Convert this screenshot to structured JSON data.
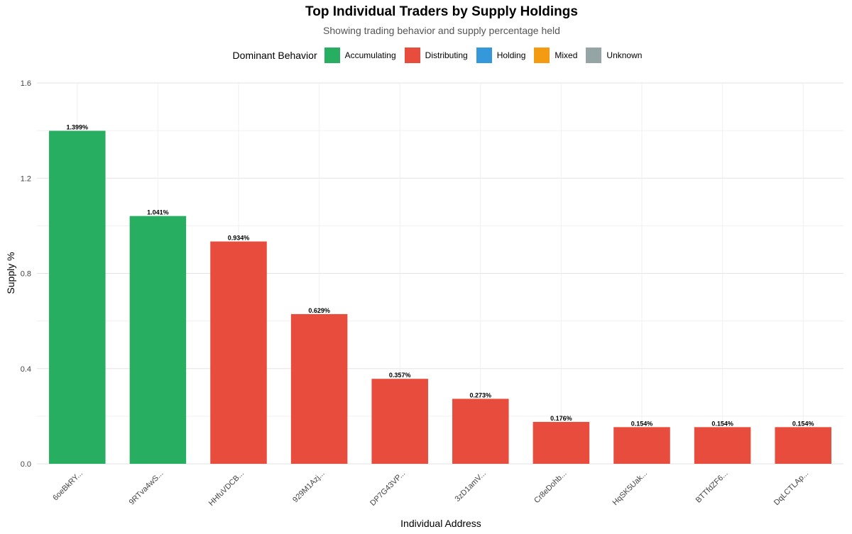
{
  "chart_data": {
    "type": "bar",
    "title": "Top Individual Traders by Supply Holdings",
    "subtitle": "Showing trading behavior and supply percentage held",
    "xlabel": "Individual Address",
    "ylabel": "Supply %",
    "ylim": [
      0,
      1.6
    ],
    "yticks": [
      0.0,
      0.4,
      0.8,
      1.2,
      1.6
    ],
    "grid": true,
    "legend": {
      "title": "Dominant Behavior",
      "placement": "top",
      "entries": [
        {
          "label": "Accumulating",
          "color": "#27ae60"
        },
        {
          "label": "Distributing",
          "color": "#e74c3c"
        },
        {
          "label": "Holding",
          "color": "#3498db"
        },
        {
          "label": "Mixed",
          "color": "#f39c12"
        },
        {
          "label": "Unknown",
          "color": "#95a5a6"
        }
      ]
    },
    "categories": [
      "6oeBkRY...",
      "9RTva4wS...",
      "HHfuVDCB...",
      "929M1Azj...",
      "DP7G43VP...",
      "3zD1amV...",
      "Cr8eDohb...",
      "HqSK5Uak...",
      "BTTfdZF6...",
      "DqLCTLAp..."
    ],
    "values": [
      1.399,
      1.041,
      0.934,
      0.629,
      0.357,
      0.273,
      0.176,
      0.154,
      0.154,
      0.154
    ],
    "value_labels": [
      "1.399%",
      "1.041%",
      "0.934%",
      "0.629%",
      "0.357%",
      "0.273%",
      "0.176%",
      "0.154%",
      "0.154%",
      "0.154%"
    ],
    "behaviors": [
      "Accumulating",
      "Accumulating",
      "Distributing",
      "Distributing",
      "Distributing",
      "Distributing",
      "Distributing",
      "Distributing",
      "Distributing",
      "Distributing"
    ]
  }
}
